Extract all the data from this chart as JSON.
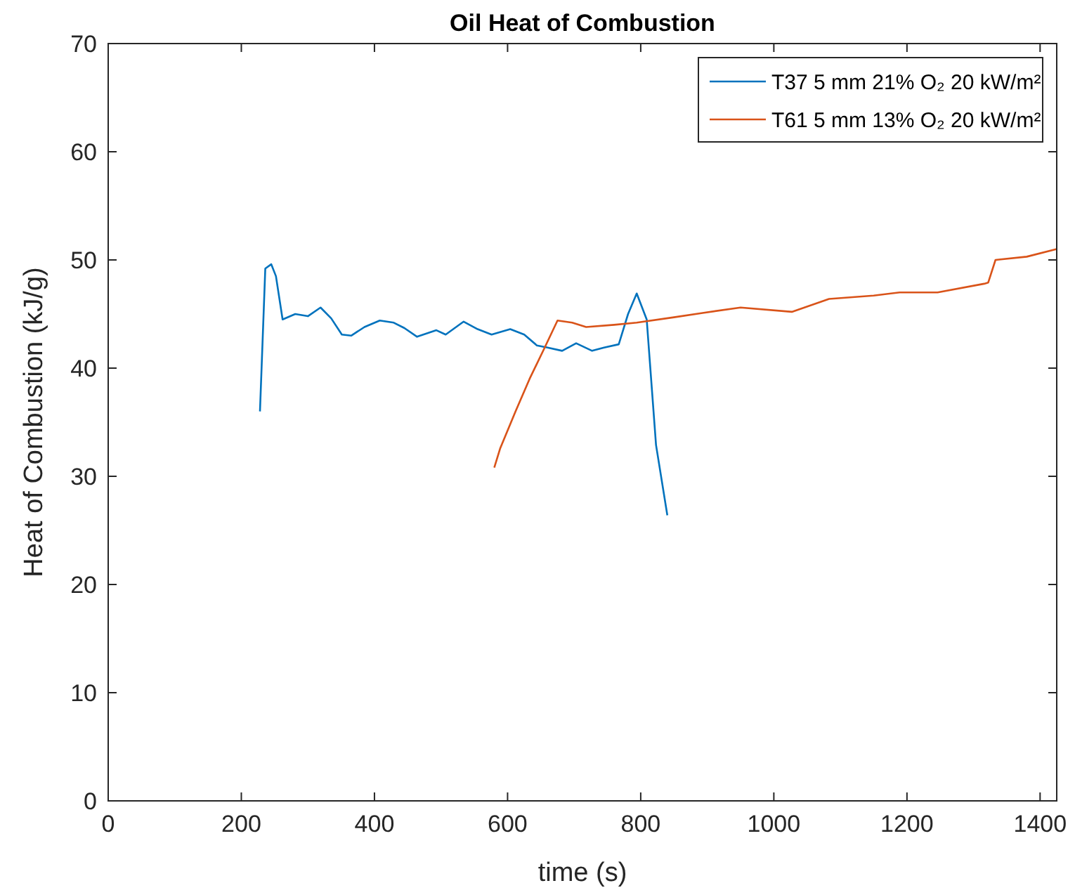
{
  "chart_data": {
    "type": "line",
    "title": "Oil Heat of Combustion",
    "xlabel": "time (s)",
    "ylabel": "Heat of Combustion (kJ/g)",
    "xlim": [
      0,
      1425
    ],
    "xticks": [
      0,
      200,
      400,
      600,
      800,
      1000,
      1200,
      1400
    ],
    "ylim": [
      0,
      70
    ],
    "yticks": [
      0,
      10,
      20,
      30,
      40,
      50,
      60,
      70
    ],
    "grid": false,
    "legend": "top right",
    "series": [
      {
        "name": "T37 5 mm 21% O₂ 20 kW/m²",
        "color": "#0072bd",
        "x": [
          228,
          236,
          245,
          252,
          262,
          281,
          300,
          319,
          335,
          351,
          365,
          385,
          408,
          429,
          445,
          464,
          493,
          507,
          534,
          555,
          576,
          604,
          625,
          644,
          660,
          682,
          703,
          727,
          745,
          767,
          781,
          794,
          809,
          823,
          840
        ],
        "values": [
          36,
          49.2,
          49.6,
          48.5,
          44.5,
          45,
          44.8,
          45.6,
          44.6,
          43.1,
          43,
          43.8,
          44.4,
          44.2,
          43.7,
          42.9,
          43.5,
          43.1,
          44.3,
          43.6,
          43.1,
          43.6,
          43.1,
          42.1,
          41.9,
          41.6,
          42.3,
          41.6,
          41.9,
          42.2,
          45,
          46.9,
          44.5,
          32.9,
          26.4
        ]
      },
      {
        "name": "T61 5 mm 13% O₂ 20 kW/m²",
        "color": "#d95319",
        "x": [
          580,
          589,
          612,
          633,
          655,
          675,
          697,
          718,
          760,
          794,
          850,
          893,
          950,
          1027,
          1083,
          1150,
          1189,
          1246,
          1316,
          1322,
          1333,
          1380,
          1425
        ],
        "values": [
          30.8,
          32.6,
          36,
          39,
          41.8,
          44.4,
          44.2,
          43.8,
          44,
          44.2,
          44.7,
          45.1,
          45.6,
          45.2,
          46.4,
          46.7,
          47,
          47,
          47.8,
          47.9,
          50,
          50.3,
          51
        ]
      }
    ]
  }
}
